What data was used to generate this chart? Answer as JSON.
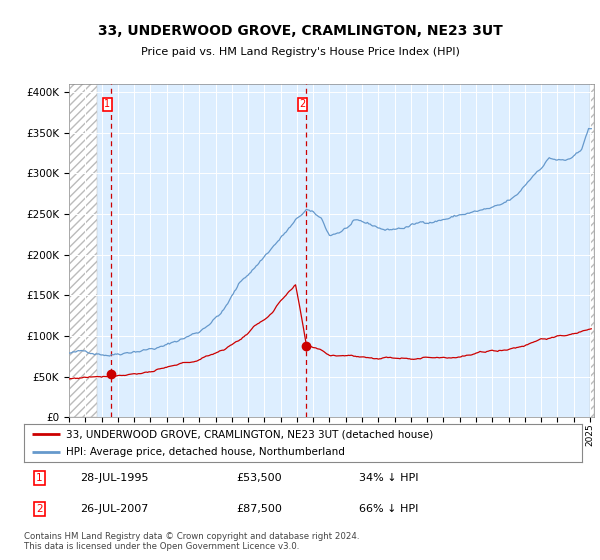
{
  "title": "33, UNDERWOOD GROVE, CRAMLINGTON, NE23 3UT",
  "subtitle": "Price paid vs. HM Land Registry's House Price Index (HPI)",
  "legend_line1": "33, UNDERWOOD GROVE, CRAMLINGTON, NE23 3UT (detached house)",
  "legend_line2": "HPI: Average price, detached house, Northumberland",
  "annotation1_label": "28-JUL-1995",
  "annotation1_price_str": "£53,500",
  "annotation1_pct": "34% ↓ HPI",
  "annotation1_price": 53500,
  "annotation1_year": 1995.58,
  "annotation2_label": "26-JUL-2007",
  "annotation2_price_str": "£87,500",
  "annotation2_pct": "66% ↓ HPI",
  "annotation2_price": 87500,
  "annotation2_year": 2007.58,
  "footer": "Contains HM Land Registry data © Crown copyright and database right 2024.\nThis data is licensed under the Open Government Licence v3.0.",
  "hpi_color": "#6699cc",
  "price_color": "#cc0000",
  "dashed_line_color": "#cc0000",
  "background_color": "#ddeeff",
  "ylim": [
    0,
    400000
  ],
  "yticks": [
    0,
    50000,
    100000,
    150000,
    200000,
    250000,
    300000,
    350000,
    400000
  ],
  "xmin": 1993.0,
  "xmax": 2025.25,
  "hatch_right_start": 2025.0,
  "hatch_left_end": 1994.75,
  "hpi_keypoints_x": [
    1993.0,
    1995.58,
    1997.0,
    1999.0,
    2001.0,
    2002.5,
    2003.5,
    2004.5,
    2005.5,
    2006.5,
    2007.6,
    2008.5,
    2009.0,
    2009.75,
    2010.5,
    2011.5,
    2012.5,
    2013.5,
    2014.5,
    2015.5,
    2016.5,
    2017.5,
    2018.5,
    2019.5,
    2020.5,
    2021.5,
    2022.5,
    2023.5,
    2024.5,
    2024.92
  ],
  "hpi_keypoints_y": [
    79000,
    80000,
    88000,
    95000,
    112000,
    140000,
    172000,
    194000,
    218000,
    240000,
    262000,
    248000,
    228000,
    234000,
    244000,
    237000,
    231000,
    234000,
    239000,
    244000,
    249000,
    254000,
    257000,
    259000,
    269000,
    294000,
    318000,
    314000,
    323000,
    352000
  ],
  "price_keypoints_x": [
    1993.0,
    1995.58,
    1997.0,
    1999.0,
    2001.0,
    2002.5,
    2003.5,
    2004.5,
    2005.5,
    2006.0,
    2006.92,
    2007.58,
    2008.5,
    2009.0,
    2010.0,
    2011.0,
    2012.0,
    2013.0,
    2014.0,
    2015.0,
    2016.0,
    2017.0,
    2018.0,
    2019.0,
    2020.0,
    2021.0,
    2022.0,
    2023.0,
    2024.0,
    2024.92
  ],
  "price_keypoints_y": [
    47000,
    53500,
    58000,
    64000,
    72000,
    86000,
    98000,
    116000,
    132000,
    145000,
    162000,
    87500,
    82000,
    76000,
    78000,
    76000,
    75000,
    76000,
    78000,
    79000,
    81000,
    83000,
    86000,
    89000,
    92000,
    97000,
    107000,
    109000,
    111000,
    117000
  ]
}
